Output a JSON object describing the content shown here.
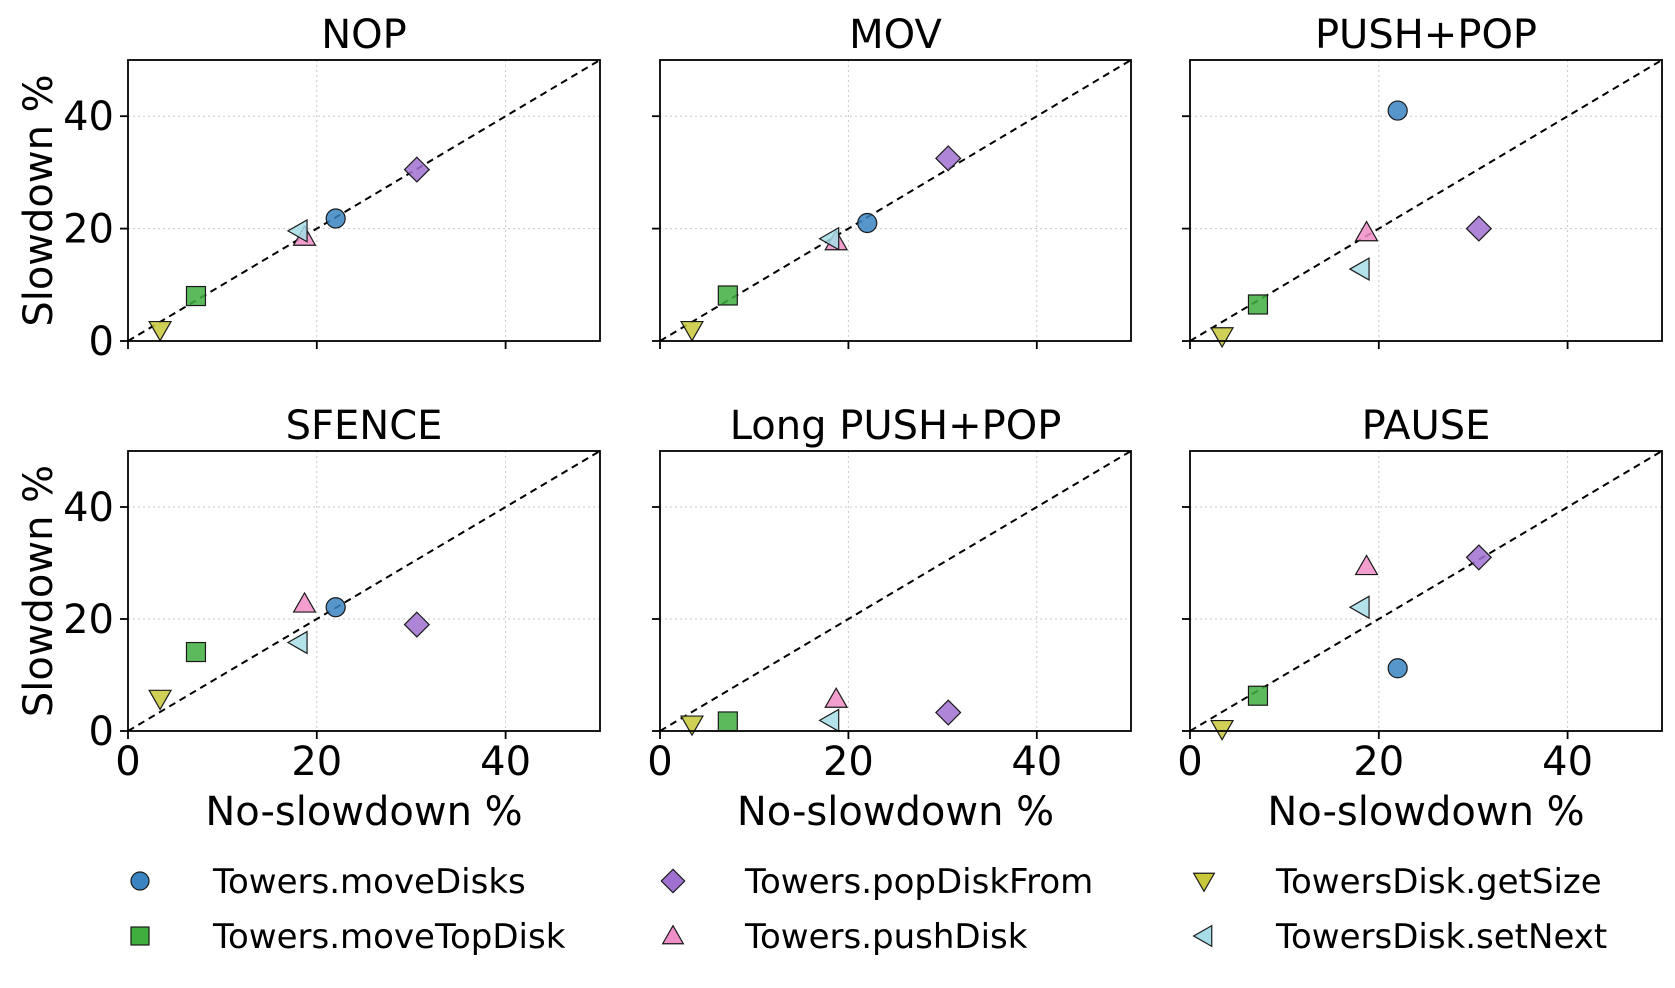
{
  "chart_data": [
    {
      "type": "scatter",
      "title": "NOP",
      "xlabel": "",
      "ylabel": "Slowdown %",
      "xlim": [
        0,
        50
      ],
      "ylim": [
        0,
        50
      ],
      "xticks": [
        0,
        20,
        40
      ],
      "yticks": [
        0,
        20,
        40
      ],
      "grid": true,
      "diagonal": true,
      "series": [
        {
          "name": "Towers.moveDisks",
          "x": 22.0,
          "y": 21.8
        },
        {
          "name": "Towers.moveTopDisk",
          "x": 7.2,
          "y": 8.0
        },
        {
          "name": "Towers.popDiskFrom",
          "x": 30.6,
          "y": 30.5
        },
        {
          "name": "Towers.pushDisk",
          "x": 18.7,
          "y": 18.5
        },
        {
          "name": "TowersDisk.getSize",
          "x": 3.4,
          "y": 2.0
        },
        {
          "name": "TowersDisk.setNext",
          "x": 18.1,
          "y": 19.6
        }
      ]
    },
    {
      "type": "scatter",
      "title": "MOV",
      "xlabel": "",
      "ylabel": "",
      "xlim": [
        0,
        50
      ],
      "ylim": [
        0,
        50
      ],
      "xticks": [
        0,
        20,
        40
      ],
      "yticks": [
        0,
        20,
        40
      ],
      "grid": true,
      "diagonal": true,
      "series": [
        {
          "name": "Towers.moveDisks",
          "x": 22.0,
          "y": 21.0
        },
        {
          "name": "Towers.moveTopDisk",
          "x": 7.2,
          "y": 8.1
        },
        {
          "name": "Towers.popDiskFrom",
          "x": 30.6,
          "y": 32.5
        },
        {
          "name": "Towers.pushDisk",
          "x": 18.7,
          "y": 17.7
        },
        {
          "name": "TowersDisk.getSize",
          "x": 3.4,
          "y": 2.0
        },
        {
          "name": "TowersDisk.setNext",
          "x": 18.1,
          "y": 18.2
        }
      ]
    },
    {
      "type": "scatter",
      "title": "PUSH+POP",
      "xlabel": "",
      "ylabel": "",
      "xlim": [
        0,
        50
      ],
      "ylim": [
        0,
        50
      ],
      "xticks": [
        0,
        20,
        40
      ],
      "yticks": [
        0,
        20,
        40
      ],
      "grid": true,
      "diagonal": true,
      "series": [
        {
          "name": "Towers.moveDisks",
          "x": 22.0,
          "y": 41.0
        },
        {
          "name": "Towers.moveTopDisk",
          "x": 7.2,
          "y": 6.5
        },
        {
          "name": "Towers.popDiskFrom",
          "x": 30.6,
          "y": 20.0
        },
        {
          "name": "Towers.pushDisk",
          "x": 18.7,
          "y": 19.3
        },
        {
          "name": "TowersDisk.getSize",
          "x": 3.4,
          "y": 0.9
        },
        {
          "name": "TowersDisk.setNext",
          "x": 18.1,
          "y": 12.8
        }
      ]
    },
    {
      "type": "scatter",
      "title": "SFENCE",
      "xlabel": "No-slowdown %",
      "ylabel": "Slowdown %",
      "xlim": [
        0,
        50
      ],
      "ylim": [
        0,
        50
      ],
      "xticks": [
        0,
        20,
        40
      ],
      "yticks": [
        0,
        20,
        40
      ],
      "grid": true,
      "diagonal": true,
      "series": [
        {
          "name": "Towers.moveDisks",
          "x": 22.0,
          "y": 22.1
        },
        {
          "name": "Towers.moveTopDisk",
          "x": 7.2,
          "y": 14.1
        },
        {
          "name": "Towers.popDiskFrom",
          "x": 30.6,
          "y": 19.0
        },
        {
          "name": "Towers.pushDisk",
          "x": 18.7,
          "y": 22.7
        },
        {
          "name": "TowersDisk.getSize",
          "x": 3.4,
          "y": 5.8
        },
        {
          "name": "TowersDisk.setNext",
          "x": 18.1,
          "y": 15.8
        }
      ]
    },
    {
      "type": "scatter",
      "title": "Long PUSH+POP",
      "xlabel": "No-slowdown %",
      "ylabel": "",
      "xlim": [
        0,
        50
      ],
      "ylim": [
        0,
        50
      ],
      "xticks": [
        0,
        20,
        40
      ],
      "yticks": [
        0,
        20,
        40
      ],
      "grid": true,
      "diagonal": true,
      "series": [
        {
          "name": "Towers.moveDisks",
          "x": null,
          "y": null
        },
        {
          "name": "Towers.moveTopDisk",
          "x": 7.2,
          "y": 1.7
        },
        {
          "name": "Towers.popDiskFrom",
          "x": 30.6,
          "y": 3.3
        },
        {
          "name": "Towers.pushDisk",
          "x": 18.7,
          "y": 5.7
        },
        {
          "name": "TowersDisk.getSize",
          "x": 3.4,
          "y": 1.2
        },
        {
          "name": "TowersDisk.setNext",
          "x": 18.1,
          "y": 1.9
        }
      ]
    },
    {
      "type": "scatter",
      "title": "PAUSE",
      "xlabel": "No-slowdown %",
      "ylabel": "",
      "xlim": [
        0,
        50
      ],
      "ylim": [
        0,
        50
      ],
      "xticks": [
        0,
        20,
        40
      ],
      "yticks": [
        0,
        20,
        40
      ],
      "grid": true,
      "diagonal": true,
      "series": [
        {
          "name": "Towers.moveDisks",
          "x": 22.0,
          "y": 11.2
        },
        {
          "name": "Towers.moveTopDisk",
          "x": 7.2,
          "y": 6.3
        },
        {
          "name": "Towers.popDiskFrom",
          "x": 30.6,
          "y": 31.0
        },
        {
          "name": "Towers.pushDisk",
          "x": 18.7,
          "y": 29.4
        },
        {
          "name": "TowersDisk.getSize",
          "x": 3.4,
          "y": 0.4
        },
        {
          "name": "TowersDisk.setNext",
          "x": 18.1,
          "y": 22.1
        }
      ]
    }
  ],
  "legend": {
    "placement": "bottom",
    "entries": [
      {
        "label": "Towers.moveDisks",
        "marker": "circle",
        "color": "#3a84c2"
      },
      {
        "label": "Towers.moveTopDisk",
        "marker": "square",
        "color": "#3fae3f"
      },
      {
        "label": "Towers.popDiskFrom",
        "marker": "diamond",
        "color": "#a070d0"
      },
      {
        "label": "Towers.pushDisk",
        "marker": "triangle-up",
        "color": "#f08ec8"
      },
      {
        "label": "TowersDisk.getSize",
        "marker": "triangle-down",
        "color": "#c8c83a"
      },
      {
        "label": "TowersDisk.setNext",
        "marker": "triangle-left",
        "color": "#a6dde8"
      }
    ]
  }
}
